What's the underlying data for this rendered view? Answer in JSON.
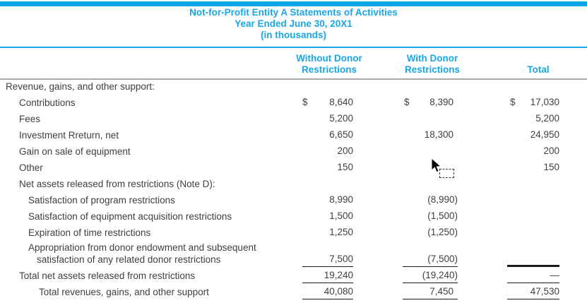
{
  "colors": {
    "accent": "#18a7e6",
    "top_bar": "#00a8e8",
    "header_rule_gray": "#a9a9a9",
    "body_text": "#3e3e43",
    "underline_black": "#1b1b1b"
  },
  "title": {
    "line1": "Not-for-Profit Entity A Statements of Activities",
    "line2": "Year Ended June 30, 20X1",
    "line3": "(in thousands)"
  },
  "columns": {
    "without": "Without Donor Restrictions",
    "with": "With Donor Restrictions",
    "total": "Total"
  },
  "pointer": {
    "type": "mouse-arrow-with-selection-marquee"
  },
  "table": {
    "rows": [
      {
        "label": "Revenue, gains, and other support:",
        "indent": 0
      },
      {
        "label": "Contributions",
        "indent": 1,
        "d1": "$",
        "a1": "8,640",
        "d2": "$",
        "a2": "8,390",
        "d3": "$",
        "a3": "17,030"
      },
      {
        "label": "Fees",
        "indent": 1,
        "a1": "5,200",
        "a3": "5,200"
      },
      {
        "label": "Investment Rreturn, net",
        "indent": 1,
        "a1": "6,650",
        "a2": "18,300",
        "a3": "24,950"
      },
      {
        "label": "Gain on sale of equipment",
        "indent": 1,
        "a1": "200",
        "a3": "200"
      },
      {
        "label": "Other",
        "indent": 1,
        "a1": "150",
        "a3": "150"
      },
      {
        "label": "Net assets released from restrictions (Note D):",
        "indent": 1
      },
      {
        "label": "Satisfaction of program restrictions",
        "indent": 2,
        "a1": "8,990",
        "a2": "(8,990)"
      },
      {
        "label": "Satisfaction of equipment acquisition restrictions",
        "indent": 2,
        "a1": "1,500",
        "a2": "(1,500)"
      },
      {
        "label": "Expiration of time restrictions",
        "indent": 2,
        "a1": "1,250",
        "a2": "(1,250)"
      },
      {
        "label": "Appropriation from donor endowment and subsequent",
        "label2": "satisfaction of any related donor restrictions",
        "indent": 2,
        "a1": "7,500",
        "a2": "(7,500)",
        "a3": "",
        "underline": true,
        "thick3": true
      },
      {
        "label": "Total net assets released from restrictions",
        "indent": 1,
        "a1": "19,240",
        "a2": "(19,240)",
        "a3": "—",
        "underline": true
      },
      {
        "label": "Total revenues, gains, and other support",
        "indent": 3,
        "a1": "40,080",
        "a2": "7,450",
        "a3": "47,530",
        "underline": true
      }
    ]
  }
}
